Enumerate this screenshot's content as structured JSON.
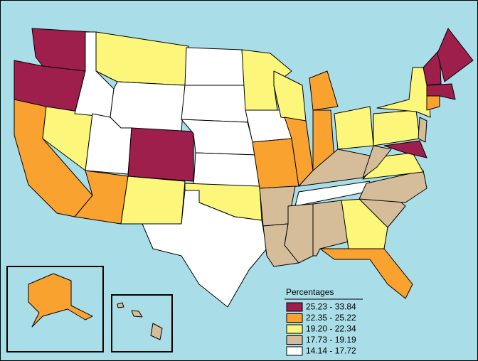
{
  "legend": {
    "title": "Percentages",
    "items": [
      {
        "label": "25.23 - 33.84",
        "color": "#9e1f4b"
      },
      {
        "label": "22.35 - 25.22",
        "color": "#f9a22f"
      },
      {
        "label": "19.20 - 22.34",
        "color": "#fcf77a"
      },
      {
        "label": "17.73 - 19.19",
        "color": "#d6bd9a"
      },
      {
        "label": "14.14 - 17.72",
        "color": "#ffffff"
      }
    ]
  }
}
